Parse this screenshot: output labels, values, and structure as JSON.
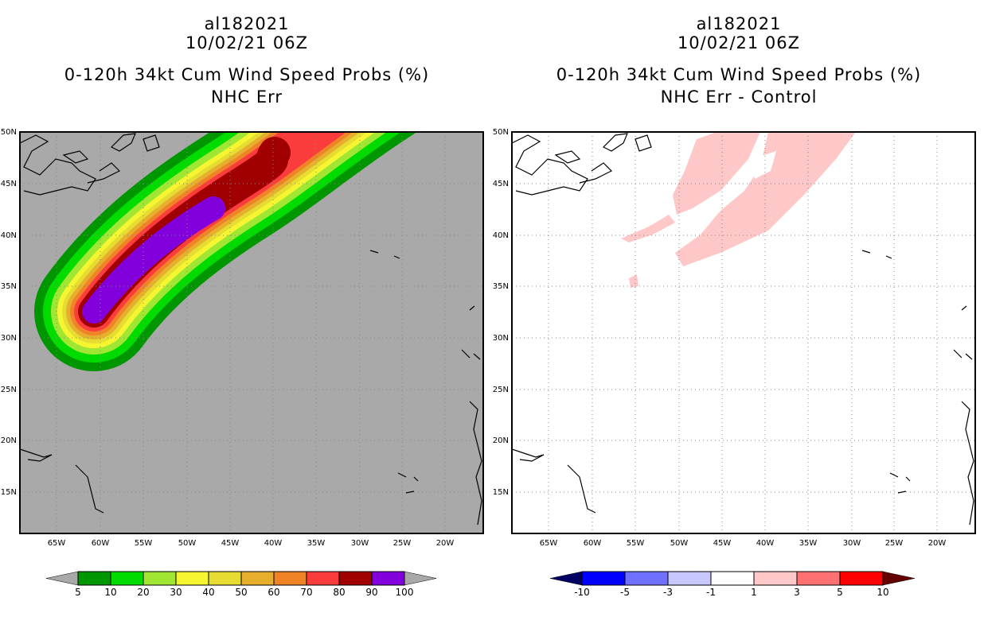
{
  "panels": [
    {
      "id": "left",
      "storm_id": "al182021",
      "datetime": "10/02/21 06Z",
      "product": "0-120h 34kt Cum Wind Speed Probs (%)",
      "subtitle": "NHC Err",
      "background": "#a9a9a9",
      "colorbar": {
        "labels": [
          "5",
          "10",
          "20",
          "30",
          "40",
          "50",
          "60",
          "70",
          "80",
          "90",
          "100"
        ],
        "colors": [
          "#009600",
          "#00dc00",
          "#a0e632",
          "#f5f532",
          "#e6dc32",
          "#e6af2d",
          "#f08228",
          "#fa3c3c",
          "#a00000",
          "#8200dc"
        ],
        "end_colors": [
          "#a9a9a9",
          "#a9a9a9"
        ]
      }
    },
    {
      "id": "right",
      "storm_id": "al182021",
      "datetime": "10/02/21 06Z",
      "product": "0-120h 34kt Cum Wind Speed Probs (%)",
      "subtitle": "NHC Err - Control",
      "background": "#ffffff",
      "colorbar": {
        "labels": [
          "-10",
          "-5",
          "-3",
          "-1",
          "1",
          "3",
          "5",
          "10"
        ],
        "colors": [
          "#0000ff",
          "#7070ff",
          "#c8c8ff",
          "#ffffff",
          "#ffc8c8",
          "#ff7070",
          "#ff0000"
        ],
        "end_colors": [
          "#000064",
          "#640000"
        ]
      }
    }
  ],
  "lat_labels": [
    "50N",
    "45N",
    "40N",
    "35N",
    "30N",
    "25N",
    "20N",
    "15N"
  ],
  "lon_labels": [
    "65W",
    "60W",
    "55W",
    "50W",
    "45W",
    "40W",
    "35W",
    "30W",
    "25W",
    "20W"
  ]
}
